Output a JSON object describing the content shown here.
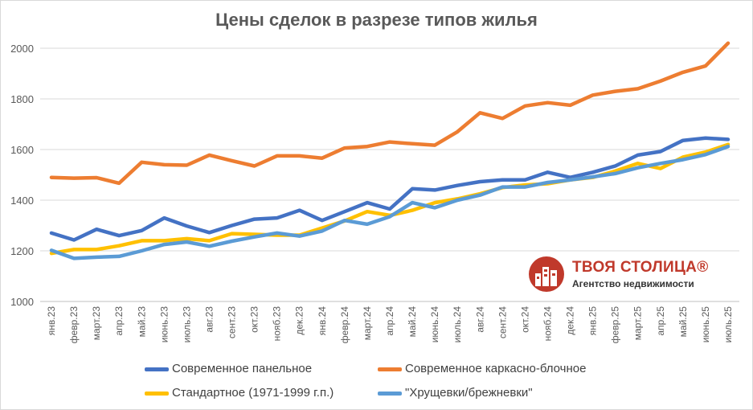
{
  "chart_data": {
    "type": "line",
    "title": "Цены сделок в разрезе типов жилья",
    "categories": [
      "янв.23",
      "февр.23",
      "март.23",
      "апр.23",
      "май.23",
      "июнь.23",
      "июль.23",
      "авг.23",
      "сент.23",
      "окт.23",
      "нояб.23",
      "дек.23",
      "янв.24",
      "февр.24",
      "март.24",
      "апр.24",
      "май.24",
      "июнь.24",
      "июль.24",
      "авг.24",
      "сент.24",
      "окт.24",
      "нояб.24",
      "дек.24",
      "янв.25",
      "февр.25",
      "март.25",
      "апр.25",
      "май.25",
      "июнь.25",
      "июль.25"
    ],
    "ylim": [
      1000,
      2000
    ],
    "yticks": [
      1000,
      1200,
      1400,
      1600,
      1800,
      2000
    ],
    "grid": true,
    "legend_position": "bottom",
    "series": [
      {
        "name": "Современное панельное",
        "color": "#4472C4",
        "values": [
          1270,
          1243,
          1285,
          1260,
          1280,
          1330,
          1298,
          1272,
          1300,
          1325,
          1330,
          1360,
          1320,
          1355,
          1390,
          1365,
          1445,
          1440,
          1458,
          1473,
          1480,
          1480,
          1510,
          1490,
          1510,
          1535,
          1578,
          1592,
          1636,
          1645,
          1640
        ]
      },
      {
        "name": "Современное каркасно-блочное",
        "color": "#ED7D31",
        "values": [
          1490,
          1487,
          1489,
          1467,
          1550,
          1540,
          1538,
          1578,
          1556,
          1535,
          1575,
          1575,
          1566,
          1606,
          1612,
          1630,
          1623,
          1617,
          1670,
          1745,
          1723,
          1772,
          1785,
          1775,
          1815,
          1830,
          1840,
          1870,
          1905,
          1930,
          2020
        ]
      },
      {
        "name": "Стандартное (1971-1999 г.п.)",
        "color": "#FFC000",
        "values": [
          1190,
          1205,
          1205,
          1220,
          1240,
          1240,
          1248,
          1240,
          1268,
          1265,
          1262,
          1262,
          1290,
          1318,
          1355,
          1340,
          1360,
          1390,
          1405,
          1425,
          1450,
          1460,
          1465,
          1480,
          1490,
          1515,
          1545,
          1525,
          1570,
          1590,
          1620
        ]
      },
      {
        "name": "\"Хрущевки/брежневки\"",
        "color": "#5B9BD5",
        "values": [
          1202,
          1170,
          1175,
          1178,
          1200,
          1225,
          1235,
          1218,
          1238,
          1255,
          1270,
          1258,
          1278,
          1320,
          1305,
          1335,
          1390,
          1370,
          1400,
          1420,
          1452,
          1452,
          1470,
          1480,
          1492,
          1505,
          1528,
          1545,
          1560,
          1580,
          1612
        ]
      }
    ]
  },
  "logo": {
    "name": "ТВОЯ СТОЛИЦА®",
    "subtitle": "Агентство недвижимости"
  }
}
